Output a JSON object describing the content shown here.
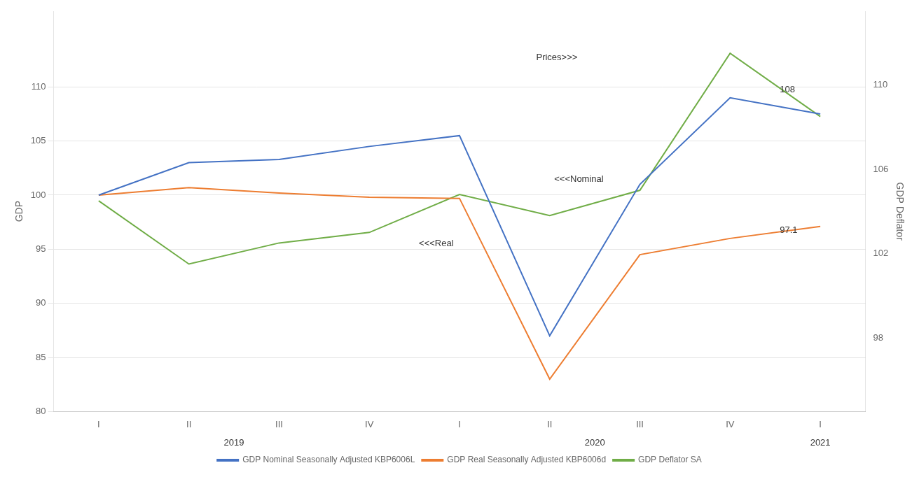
{
  "chart_data": {
    "type": "line",
    "categories": [
      "I",
      "II",
      "III",
      "IV",
      "I",
      "II",
      "III",
      "IV",
      "I"
    ],
    "series": [
      {
        "name": "GDP Nominal Seasonally Adjusted KBP6006L",
        "color": "#4472C4",
        "values": [
          100.0,
          103.0,
          103.3,
          104.5,
          105.5,
          87.0,
          101.0,
          109.0,
          107.5
        ]
      },
      {
        "name": "GDP Real Seasonally Adjusted KBP6006d",
        "color": "#ED7D31",
        "values": [
          100.0,
          100.7,
          100.2,
          99.8,
          99.7,
          83.0,
          94.5,
          96.0,
          97.1
        ]
      },
      {
        "name": "GDP Deflator SA",
        "color": "#70AD47",
        "axis": "y2",
        "values": [
          104.5,
          101.5,
          102.5,
          103.0,
          104.8,
          103.8,
          105.0,
          111.5,
          108.5
        ]
      }
    ],
    "y_label": "GDP",
    "y2_label": "GDP Deflator",
    "ylim": [
      80,
      117
    ],
    "yticks": [
      80,
      85,
      90,
      95,
      100,
      105,
      110
    ],
    "y2lim": [
      94.5,
      113.5
    ],
    "y2ticks": [
      98,
      102,
      106,
      110
    ],
    "grid": true,
    "legend": "bottom",
    "annotations": [
      {
        "text": "Prices>>>",
        "x": 4.85,
        "y": 112.5
      },
      {
        "text": "<<<Nominal",
        "x": 5.05,
        "y": 101.2
      },
      {
        "text": "<<<Real",
        "x": 3.55,
        "y": 95.3
      },
      {
        "text": "108",
        "x": 7.55,
        "y": 109.5
      },
      {
        "text": "97.1",
        "x": 7.55,
        "y": 96.5
      },
      {
        "text": "2019",
        "x": 1.5
      },
      {
        "text": "2020",
        "x": 5.5
      },
      {
        "text": "2021",
        "x": 8.0
      }
    ]
  }
}
